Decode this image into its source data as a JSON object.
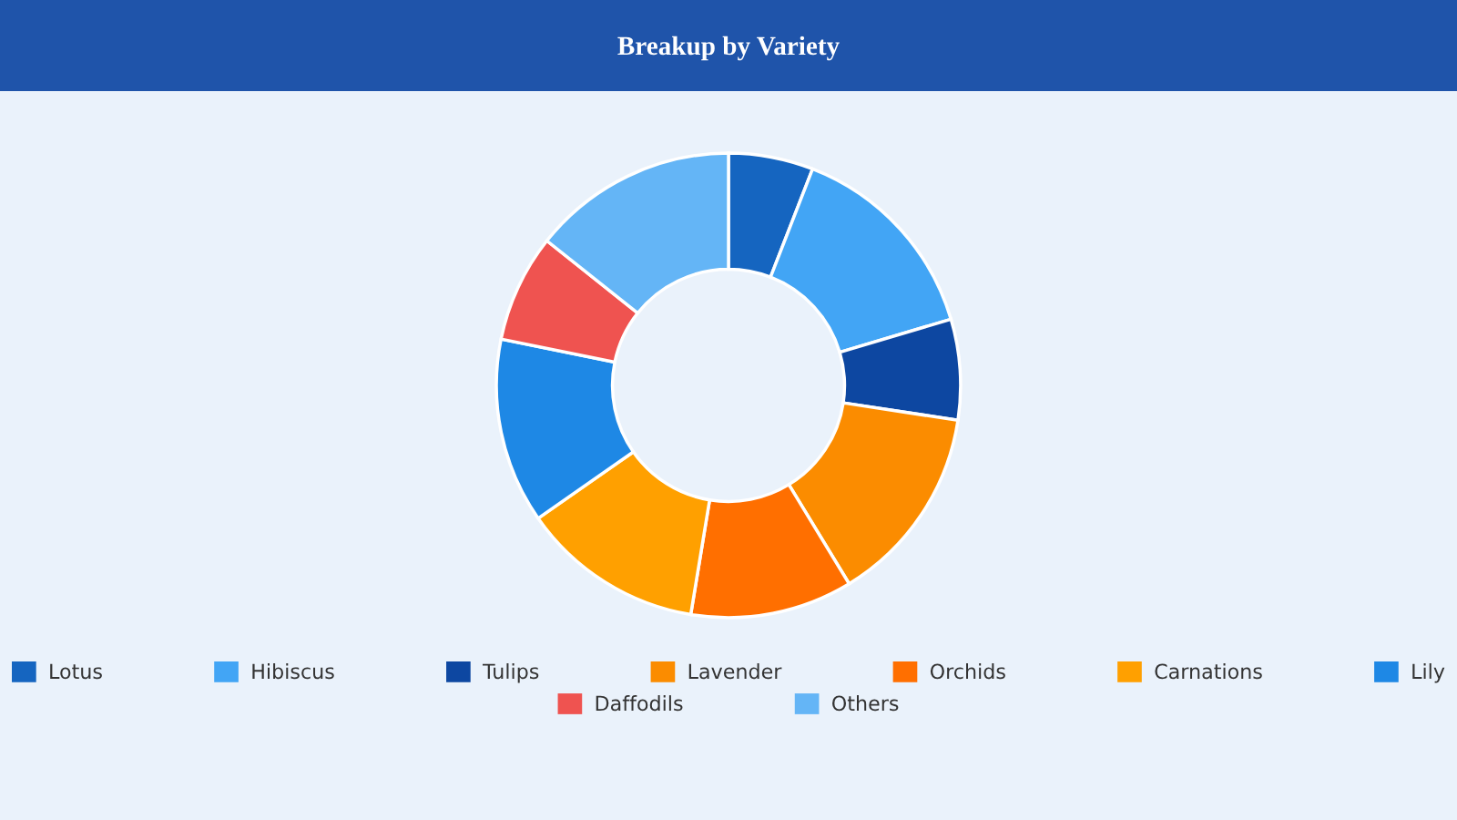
{
  "chart_data": {
    "type": "donut",
    "title": "Breakup by Variety",
    "categories": [
      "Lotus",
      "Hibiscus",
      "Tulips",
      "Lavender",
      "Orchids",
      "Carnations",
      "Lily",
      "Daffodils",
      "Others"
    ],
    "values": [
      5.9,
      14.5,
      7.0,
      13.9,
      11.3,
      12.7,
      12.9,
      7.5,
      14.3
    ],
    "colors": [
      "#1565c0",
      "#42a5f5",
      "#0d47a1",
      "#fb8c00",
      "#ff6f00",
      "#ffa000",
      "#1e88e5",
      "#ef5350",
      "#64b5f6"
    ],
    "legend": "bottom"
  }
}
